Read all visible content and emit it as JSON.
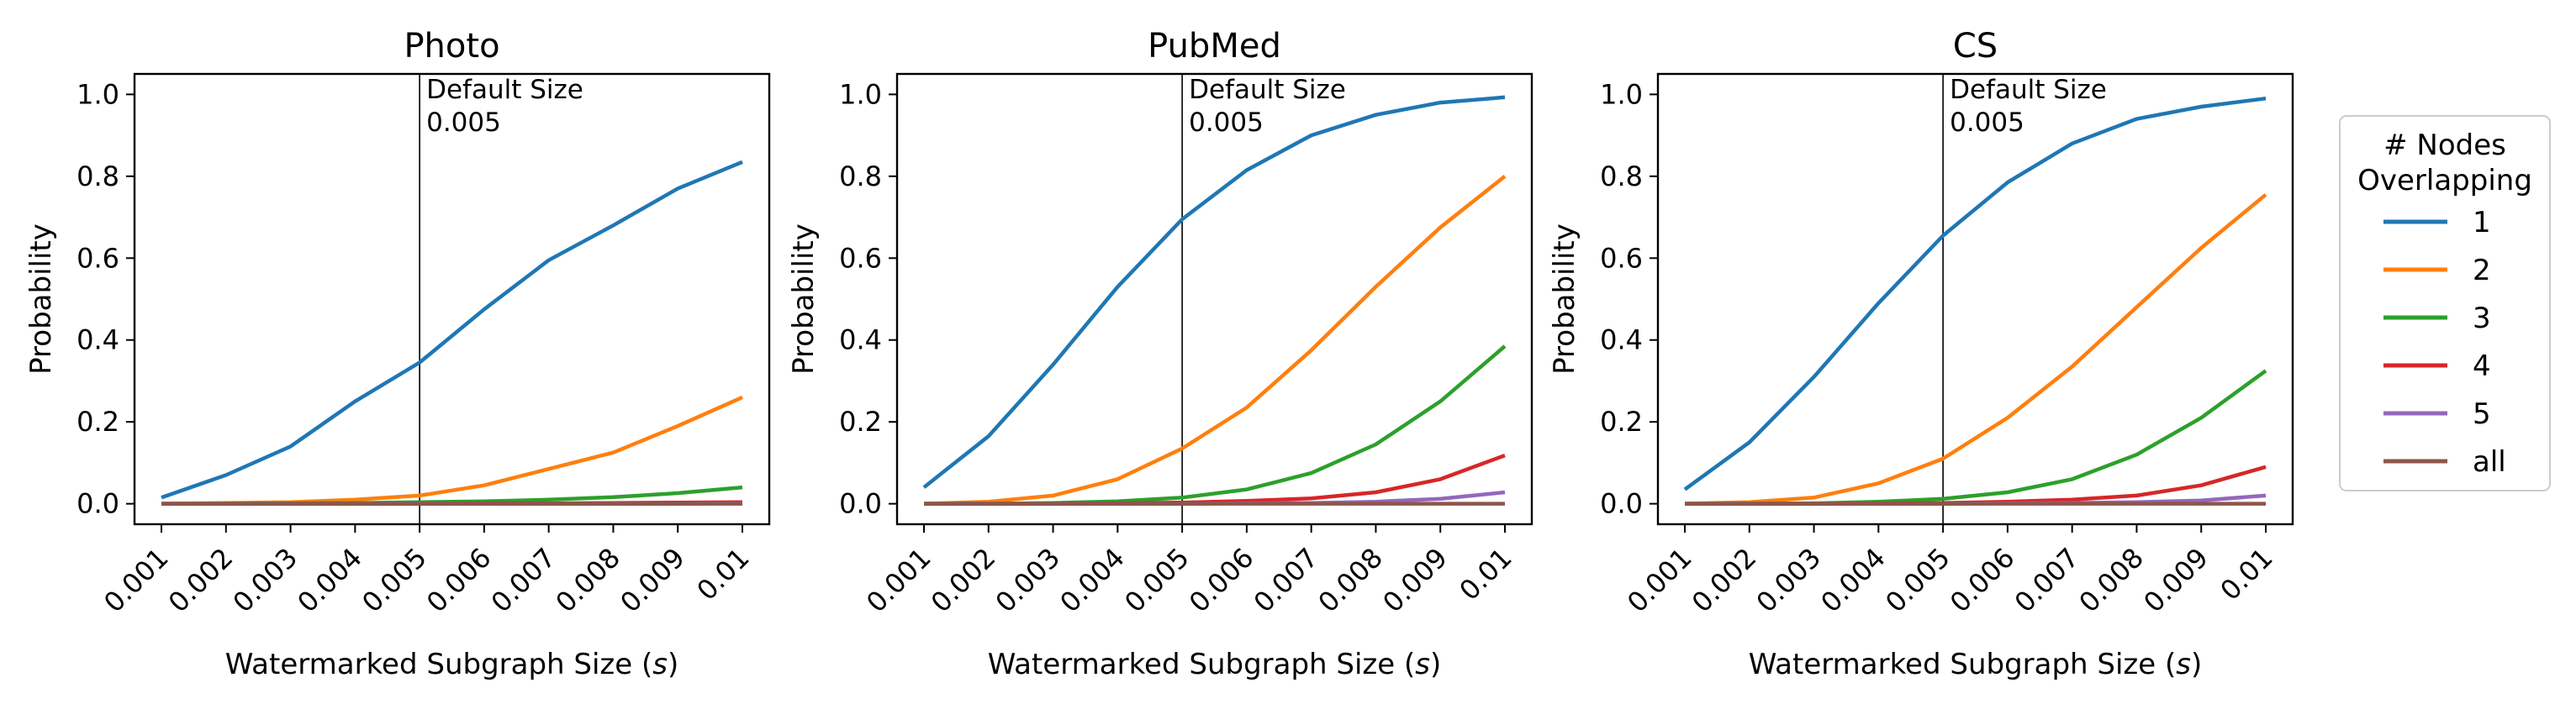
{
  "figure": {
    "legend": {
      "title_line1": "# Nodes",
      "title_line2": "Overlapping",
      "entries": [
        "1",
        "2",
        "3",
        "4",
        "5",
        "all"
      ],
      "placement": "right"
    },
    "annotation": {
      "line1": "Default Size",
      "line2": "0.005",
      "x_value": 0.005
    },
    "colors": [
      "#1f77b4",
      "#ff7f0e",
      "#2ca02c",
      "#d62728",
      "#9467bd",
      "#8c564b"
    ]
  },
  "chart_data": [
    {
      "type": "line",
      "title": "Photo",
      "xlabel_prefix": "Watermarked Subgraph Size (",
      "xlabel_var": "s",
      "xlabel_suffix": ")",
      "ylabel": "Probability",
      "x": [
        "0.001",
        "0.002",
        "0.003",
        "0.004",
        "0.005",
        "0.006",
        "0.007",
        "0.008",
        "0.009",
        "0.01"
      ],
      "ylim": [
        -0.05,
        1.05
      ],
      "yticks": [
        "0.0",
        "0.2",
        "0.4",
        "0.6",
        "0.8",
        "1.0"
      ],
      "series": [
        {
          "name": "1",
          "values": [
            0.015,
            0.07,
            0.14,
            0.25,
            0.345,
            0.475,
            0.595,
            0.68,
            0.77,
            0.835
          ]
        },
        {
          "name": "2",
          "values": [
            0.0,
            0.002,
            0.004,
            0.01,
            0.02,
            0.045,
            0.085,
            0.125,
            0.19,
            0.26
          ]
        },
        {
          "name": "3",
          "values": [
            0.0,
            0.0,
            0.001,
            0.002,
            0.004,
            0.006,
            0.01,
            0.016,
            0.026,
            0.04
          ]
        },
        {
          "name": "4",
          "values": [
            0.0,
            0.0,
            0.0,
            0.0,
            0.0,
            0.001,
            0.001,
            0.002,
            0.003,
            0.004
          ]
        },
        {
          "name": "5",
          "values": [
            0.0,
            0.0,
            0.0,
            0.0,
            0.0,
            0.0,
            0.0,
            0.0,
            0.0,
            0.001
          ]
        },
        {
          "name": "all",
          "values": [
            0.0,
            0.0,
            0.0,
            0.0,
            0.0,
            0.0,
            0.0,
            0.0,
            0.0,
            0.0
          ]
        }
      ]
    },
    {
      "type": "line",
      "title": "PubMed",
      "xlabel_prefix": "Watermarked Subgraph Size (",
      "xlabel_var": "s",
      "xlabel_suffix": ")",
      "ylabel": "Probability",
      "x": [
        "0.001",
        "0.002",
        "0.003",
        "0.004",
        "0.005",
        "0.006",
        "0.007",
        "0.008",
        "0.009",
        "0.01"
      ],
      "ylim": [
        -0.05,
        1.05
      ],
      "yticks": [
        "0.0",
        "0.2",
        "0.4",
        "0.6",
        "0.8",
        "1.0"
      ],
      "series": [
        {
          "name": "1",
          "values": [
            0.04,
            0.165,
            0.34,
            0.53,
            0.695,
            0.815,
            0.9,
            0.95,
            0.98,
            0.993
          ]
        },
        {
          "name": "2",
          "values": [
            0.0,
            0.005,
            0.02,
            0.06,
            0.135,
            0.235,
            0.375,
            0.53,
            0.675,
            0.8
          ]
        },
        {
          "name": "3",
          "values": [
            0.0,
            0.0,
            0.002,
            0.006,
            0.015,
            0.035,
            0.075,
            0.145,
            0.25,
            0.385
          ]
        },
        {
          "name": "4",
          "values": [
            0.0,
            0.0,
            0.0,
            0.001,
            0.003,
            0.007,
            0.013,
            0.028,
            0.06,
            0.118
          ]
        },
        {
          "name": "5",
          "values": [
            0.0,
            0.0,
            0.0,
            0.0,
            0.0,
            0.001,
            0.002,
            0.005,
            0.012,
            0.028
          ]
        },
        {
          "name": "all",
          "values": [
            0.0,
            0.0,
            0.0,
            0.0,
            0.0,
            0.0,
            0.0,
            0.0,
            0.0,
            0.0
          ]
        }
      ]
    },
    {
      "type": "line",
      "title": "CS",
      "xlabel_prefix": "Watermarked Subgraph Size (",
      "xlabel_var": "s",
      "xlabel_suffix": ")",
      "ylabel": "Probability",
      "x": [
        "0.001",
        "0.002",
        "0.003",
        "0.004",
        "0.005",
        "0.006",
        "0.007",
        "0.008",
        "0.009",
        "0.01"
      ],
      "ylim": [
        -0.05,
        1.05
      ],
      "yticks": [
        "0.0",
        "0.2",
        "0.4",
        "0.6",
        "0.8",
        "1.0"
      ],
      "series": [
        {
          "name": "1",
          "values": [
            0.035,
            0.15,
            0.31,
            0.49,
            0.655,
            0.785,
            0.88,
            0.94,
            0.97,
            0.99
          ]
        },
        {
          "name": "2",
          "values": [
            0.0,
            0.004,
            0.015,
            0.05,
            0.11,
            0.21,
            0.335,
            0.48,
            0.625,
            0.755
          ]
        },
        {
          "name": "3",
          "values": [
            0.0,
            0.0,
            0.001,
            0.005,
            0.012,
            0.028,
            0.06,
            0.12,
            0.21,
            0.325
          ]
        },
        {
          "name": "4",
          "values": [
            0.0,
            0.0,
            0.0,
            0.001,
            0.002,
            0.005,
            0.01,
            0.02,
            0.045,
            0.09
          ]
        },
        {
          "name": "5",
          "values": [
            0.0,
            0.0,
            0.0,
            0.0,
            0.0,
            0.001,
            0.002,
            0.004,
            0.008,
            0.02
          ]
        },
        {
          "name": "all",
          "values": [
            0.0,
            0.0,
            0.0,
            0.0,
            0.0,
            0.0,
            0.0,
            0.0,
            0.0,
            0.0
          ]
        }
      ]
    }
  ]
}
